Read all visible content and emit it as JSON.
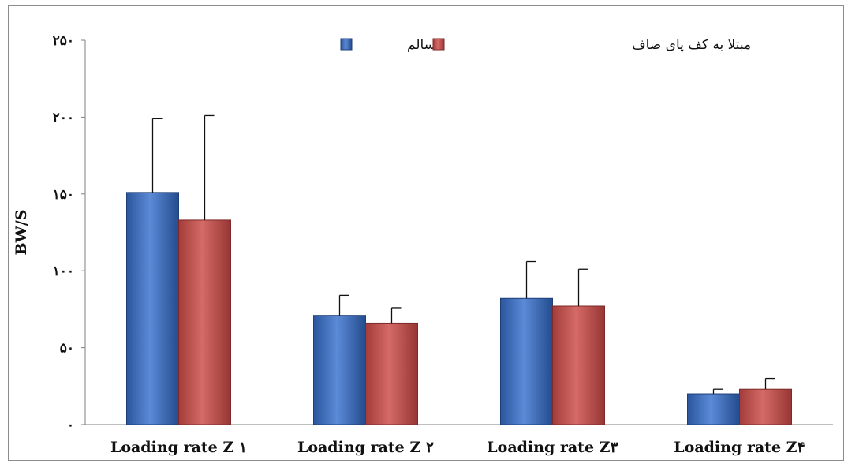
{
  "chart_data": {
    "type": "bar",
    "categories": [
      "Loading rate Z ۱",
      "Loading rate Z ۲",
      "Loading rate  Z۳",
      "Loading rate  Z۴"
    ],
    "series": [
      {
        "name": "سالم",
        "color": "#3d6fbf",
        "values": [
          151,
          71,
          82,
          20
        ],
        "errors": [
          48,
          13,
          24,
          3
        ]
      },
      {
        "name": "مبتلا به کف پای صاف",
        "color": "#c0504d",
        "values": [
          133,
          66,
          77,
          23
        ],
        "errors": [
          68,
          10,
          24,
          7
        ]
      }
    ],
    "title": "",
    "xlabel": "",
    "ylabel": "BW/S",
    "ylim": [
      0,
      250
    ],
    "yticks": [
      0,
      50,
      100,
      150,
      200,
      250
    ],
    "ytick_labels": [
      "۰",
      "۵۰",
      "۱۰۰",
      "۱۵۰",
      "۲۰۰",
      "۲۵۰"
    ],
    "grid": false,
    "legend_position": "top-center"
  }
}
